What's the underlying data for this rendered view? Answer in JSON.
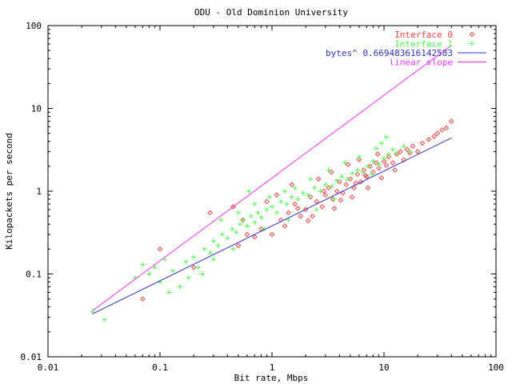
{
  "chart_data": {
    "type": "scatter",
    "title": "ODU - Old Dominion University",
    "xlabel": "Bit rate, Mbps",
    "ylabel": "Kilopackets per second",
    "x_scale": "log",
    "y_scale": "log",
    "xlim": [
      0.01,
      100
    ],
    "ylim": [
      0.01,
      100
    ],
    "x_ticks": [
      "0.01",
      "0.1",
      "1",
      "10",
      "100"
    ],
    "y_ticks": [
      "0.01",
      "0.1",
      "1",
      "10",
      "100"
    ],
    "legend_position": "top-right",
    "grid": false,
    "series": [
      {
        "name": "Interface 0",
        "marker": "diamond",
        "color": "#ff4040",
        "points": [
          [
            0.07,
            0.05
          ],
          [
            0.1,
            0.2
          ],
          [
            0.2,
            0.12
          ],
          [
            0.28,
            0.55
          ],
          [
            0.45,
            0.65
          ],
          [
            0.6,
            0.3
          ],
          [
            0.8,
            0.35
          ],
          [
            1.0,
            0.3
          ],
          [
            1.2,
            0.45
          ],
          [
            1.4,
            0.55
          ],
          [
            1.6,
            0.7
          ],
          [
            1.8,
            0.5
          ],
          [
            2.0,
            0.6
          ],
          [
            2.2,
            0.85
          ],
          [
            2.5,
            0.75
          ],
          [
            2.8,
            0.65
          ],
          [
            3.0,
            0.9
          ],
          [
            3.2,
            1.1
          ],
          [
            3.5,
            0.8
          ],
          [
            3.8,
            1.0
          ],
          [
            4.0,
            1.3
          ],
          [
            4.3,
            0.95
          ],
          [
            4.6,
            1.2
          ],
          [
            5.0,
            1.4
          ],
          [
            5.4,
            1.1
          ],
          [
            5.8,
            1.6
          ],
          [
            6.2,
            1.3
          ],
          [
            6.6,
            1.8
          ],
          [
            7.0,
            1.5
          ],
          [
            7.5,
            2.0
          ],
          [
            8.0,
            1.7
          ],
          [
            8.5,
            2.2
          ],
          [
            9.0,
            1.9
          ],
          [
            10.0,
            2.3
          ],
          [
            11.0,
            2.6
          ],
          [
            12.0,
            2.2
          ],
          [
            13.0,
            2.8
          ],
          [
            14.0,
            3.0
          ],
          [
            16.0,
            3.2
          ],
          [
            18.0,
            3.5
          ],
          [
            20.0,
            3.0
          ],
          [
            22.0,
            3.8
          ],
          [
            25.0,
            4.2
          ],
          [
            28.0,
            4.6
          ],
          [
            30.0,
            5.0
          ],
          [
            33.0,
            5.5
          ],
          [
            36.0,
            5.8
          ],
          [
            40.0,
            7.0
          ],
          [
            1.1,
            0.9
          ],
          [
            1.5,
            1.2
          ],
          [
            0.9,
            0.75
          ],
          [
            2.6,
            1.4
          ],
          [
            3.4,
            1.7
          ],
          [
            4.8,
            2.1
          ],
          [
            6.0,
            2.4
          ],
          [
            8.8,
            2.8
          ],
          [
            0.7,
            0.28
          ],
          [
            1.3,
            0.38
          ],
          [
            2.3,
            0.5
          ],
          [
            3.6,
            0.62
          ],
          [
            5.2,
            0.85
          ],
          [
            7.2,
            1.1
          ],
          [
            9.5,
            1.45
          ],
          [
            12.5,
            1.8
          ],
          [
            15.0,
            2.4
          ],
          [
            2.9,
            1.0
          ],
          [
            4.1,
            0.78
          ],
          [
            5.6,
            1.25
          ],
          [
            6.8,
            1.55
          ],
          [
            10.5,
            2.05
          ],
          [
            17.0,
            2.9
          ],
          [
            1.7,
            0.62
          ],
          [
            2.1,
            0.44
          ],
          [
            0.55,
            0.45
          ],
          [
            0.5,
            0.22
          ]
        ]
      },
      {
        "name": "Interface 1",
        "marker": "plus",
        "color": "#40ff40",
        "points": [
          [
            0.025,
            0.035
          ],
          [
            0.032,
            0.028
          ],
          [
            0.06,
            0.09
          ],
          [
            0.07,
            0.13
          ],
          [
            0.08,
            0.1
          ],
          [
            0.09,
            0.12
          ],
          [
            0.1,
            0.08
          ],
          [
            0.11,
            0.15
          ],
          [
            0.13,
            0.11
          ],
          [
            0.15,
            0.07
          ],
          [
            0.17,
            0.14
          ],
          [
            0.2,
            0.16
          ],
          [
            0.22,
            0.12
          ],
          [
            0.25,
            0.2
          ],
          [
            0.28,
            0.18
          ],
          [
            0.3,
            0.25
          ],
          [
            0.33,
            0.22
          ],
          [
            0.36,
            0.3
          ],
          [
            0.4,
            0.27
          ],
          [
            0.44,
            0.35
          ],
          [
            0.48,
            0.32
          ],
          [
            0.52,
            0.4
          ],
          [
            0.56,
            0.45
          ],
          [
            0.6,
            0.38
          ],
          [
            0.65,
            0.5
          ],
          [
            0.7,
            0.42
          ],
          [
            0.75,
            0.55
          ],
          [
            0.8,
            0.48
          ],
          [
            0.9,
            0.6
          ],
          [
            1.0,
            0.65
          ],
          [
            1.1,
            0.55
          ],
          [
            1.2,
            0.75
          ],
          [
            1.35,
            0.7
          ],
          [
            1.5,
            0.85
          ],
          [
            1.7,
            0.8
          ],
          [
            1.9,
            0.95
          ],
          [
            2.1,
            0.9
          ],
          [
            2.4,
            1.1
          ],
          [
            2.7,
            1.0
          ],
          [
            3.0,
            1.2
          ],
          [
            3.4,
            1.15
          ],
          [
            3.8,
            1.35
          ],
          [
            4.2,
            1.5
          ],
          [
            4.7,
            1.4
          ],
          [
            5.2,
            1.65
          ],
          [
            5.8,
            1.8
          ],
          [
            6.5,
            1.7
          ],
          [
            7.2,
            2.0
          ],
          [
            8.0,
            2.3
          ],
          [
            9.0,
            2.1
          ],
          [
            10.0,
            2.5
          ],
          [
            11.0,
            2.8
          ],
          [
            12.0,
            3.2
          ],
          [
            13.0,
            2.9
          ],
          [
            15.0,
            3.5
          ],
          [
            17.0,
            3.0
          ],
          [
            10.5,
            4.5
          ],
          [
            9.5,
            3.8
          ],
          [
            8.5,
            3.3
          ],
          [
            6.0,
            2.6
          ],
          [
            4.5,
            2.2
          ],
          [
            3.2,
            1.8
          ],
          [
            2.2,
            1.4
          ],
          [
            1.6,
            1.1
          ],
          [
            1.3,
            1.0
          ],
          [
            0.95,
            0.85
          ],
          [
            0.7,
            0.7
          ],
          [
            0.5,
            0.55
          ],
          [
            0.35,
            0.45
          ],
          [
            0.12,
            0.06
          ],
          [
            0.18,
            0.09
          ],
          [
            0.45,
            0.2
          ],
          [
            0.85,
            0.35
          ],
          [
            1.4,
            0.45
          ],
          [
            2.5,
            0.6
          ],
          [
            3.6,
            0.8
          ],
          [
            0.62,
            1.0
          ],
          [
            0.3,
            0.15
          ],
          [
            0.24,
            0.1
          ],
          [
            7.8,
            1.6
          ]
        ]
      },
      {
        "name": "bytes^ 0.669483616142583",
        "marker": "line",
        "color": "#3030d0",
        "points": [
          [
            0.025,
            0.033
          ],
          [
            40,
            4.4
          ]
        ]
      },
      {
        "name": "linear slope",
        "marker": "line",
        "color": "#ff30ff",
        "points": [
          [
            0.025,
            0.036
          ],
          [
            40,
            57.6
          ]
        ]
      }
    ]
  }
}
